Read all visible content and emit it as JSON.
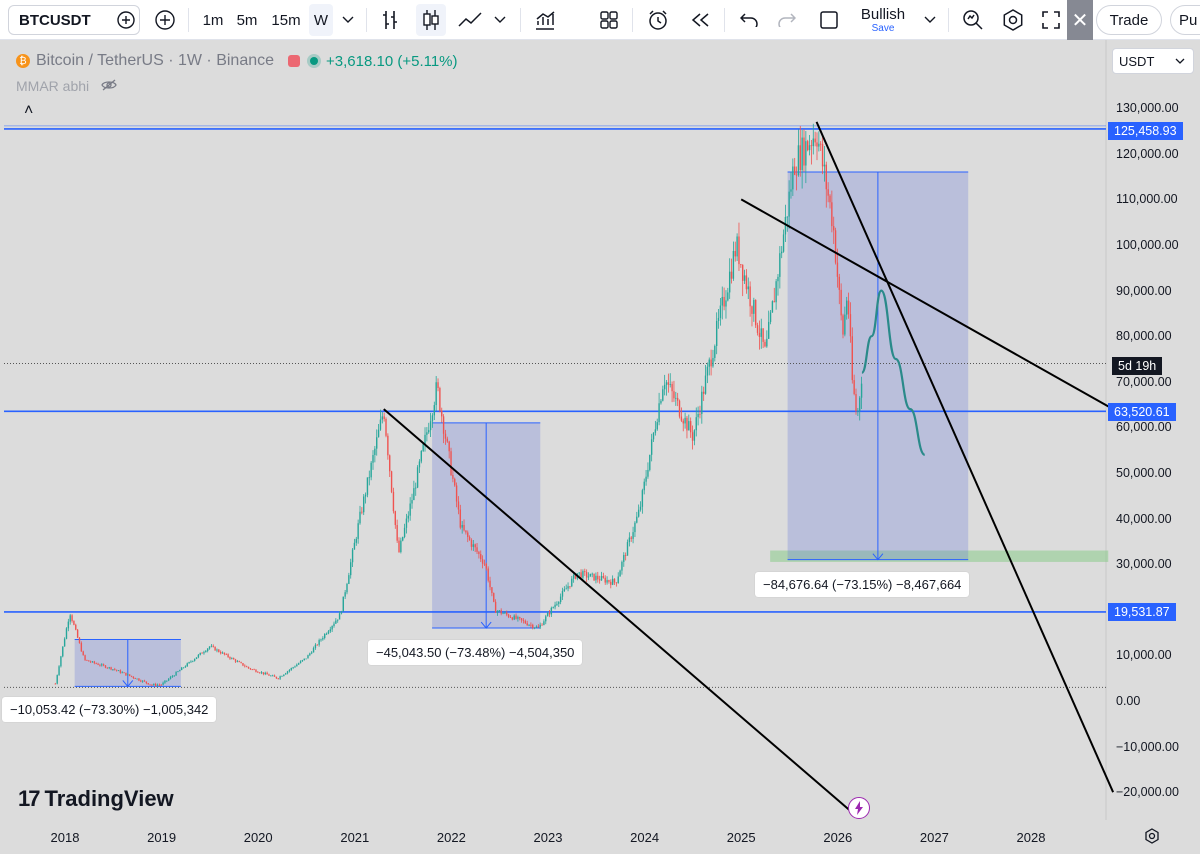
{
  "toolbar": {
    "symbol": "BTCUSDT",
    "timeframes": [
      "1m",
      "5m",
      "15m",
      "W"
    ],
    "active_timeframe": "W",
    "layout_name": "Bullish",
    "layout_sub": "Save",
    "trade_label": "Trade",
    "publish_label": "Pu"
  },
  "legend": {
    "coin_glyph": "₿",
    "title": "Bitcoin / TetherUS · 1W · Binance",
    "change": "+3,618.10 (+5.11%)",
    "indicator": "MMAR abhi",
    "collapse_glyph": "˄"
  },
  "currency_select": "USDT",
  "countdown": "5d 19h",
  "price_flags": [
    "125,458.93",
    "63,520.61",
    "19,531.87"
  ],
  "measure_labels": [
    "−84,676.64 (−73.15%) −8,467,664",
    "−45,043.50 (−73.48%) −4,504,350",
    "−10,053.42 (−73.30%) −1,005,342"
  ],
  "branding": {
    "logo_mark": "17",
    "logo_text": "TradingView"
  },
  "chart_data": {
    "type": "candlestick",
    "y_ticks": [
      130000,
      120000,
      110000,
      100000,
      90000,
      80000,
      70000,
      60000,
      50000,
      40000,
      30000,
      20000,
      10000,
      0,
      -10000,
      -20000
    ],
    "y_tick_labels": [
      "130,000.00",
      "120,000.00",
      "110,000.00",
      "100,000.00",
      "90,000.00",
      "80,000.00",
      "70,000.00",
      "60,000.00",
      "50,000.00",
      "40,000.00",
      "30,000.00",
      "20,000.00",
      "10,000.00",
      "0.00",
      "−10,000.00",
      "−20,000.00"
    ],
    "x_labels": [
      "2018",
      "2019",
      "2020",
      "2021",
      "2022",
      "2023",
      "2024",
      "2025",
      "2026",
      "2027",
      "2028"
    ],
    "x_years": [
      2018,
      2019,
      2020,
      2021,
      2022,
      2023,
      2024,
      2025,
      2026,
      2027,
      2028
    ],
    "ylim": [
      -20000,
      130000
    ],
    "price_path": [
      [
        2017.9,
        3800
      ],
      [
        2018.05,
        19500
      ],
      [
        2018.2,
        9000
      ],
      [
        2018.5,
        7000
      ],
      [
        2018.9,
        3500
      ],
      [
        2019.0,
        3600
      ],
      [
        2019.5,
        12000
      ],
      [
        2019.9,
        7200
      ],
      [
        2020.2,
        5000
      ],
      [
        2020.5,
        9500
      ],
      [
        2020.85,
        19000
      ],
      [
        2021.05,
        40000
      ],
      [
        2021.3,
        64000
      ],
      [
        2021.45,
        32000
      ],
      [
        2021.6,
        45000
      ],
      [
        2021.85,
        69000
      ],
      [
        2022.1,
        38000
      ],
      [
        2022.35,
        30000
      ],
      [
        2022.45,
        20000
      ],
      [
        2022.9,
        16000
      ],
      [
        2023.3,
        28000
      ],
      [
        2023.7,
        26000
      ],
      [
        2023.95,
        42000
      ],
      [
        2024.2,
        71000
      ],
      [
        2024.5,
        58000
      ],
      [
        2024.95,
        100000
      ],
      [
        2025.25,
        76000
      ],
      [
        2025.55,
        118000
      ],
      [
        2025.78,
        125000
      ],
      [
        2025.95,
        105000
      ],
      [
        2026.05,
        80000
      ],
      [
        2026.1,
        90000
      ],
      [
        2026.15,
        70000
      ],
      [
        2026.2,
        62000
      ],
      [
        2026.25,
        72000
      ]
    ],
    "projection_path": [
      [
        2026.25,
        72000
      ],
      [
        2026.35,
        80000
      ],
      [
        2026.45,
        90000
      ],
      [
        2026.6,
        75000
      ],
      [
        2026.75,
        64000
      ],
      [
        2026.9,
        54000
      ]
    ],
    "horizontal_levels": [
      125458.93,
      63520.61,
      19531.87
    ],
    "dotted_levels": [
      74000,
      3000
    ],
    "trendlines": [
      {
        "from": [
          2025.78,
          127000
        ],
        "to": [
          2028.85,
          -20000
        ]
      },
      {
        "from": [
          2025.0,
          110000
        ],
        "to": [
          2028.85,
          64000
        ]
      },
      {
        "from": [
          2021.3,
          64000
        ],
        "to": [
          2026.18,
          -25000
        ]
      }
    ],
    "measure_boxes": [
      {
        "x": [
          2025.48,
          2027.35
        ],
        "y": [
          116000,
          31000
        ]
      },
      {
        "x": [
          2021.8,
          2022.92
        ],
        "y": [
          61000,
          16000
        ]
      },
      {
        "x": [
          2018.1,
          2019.2
        ],
        "y": [
          13500,
          3200
        ]
      }
    ],
    "support_zone": {
      "x": [
        2025.3,
        2028.8
      ],
      "y": [
        33000,
        30500
      ]
    }
  }
}
